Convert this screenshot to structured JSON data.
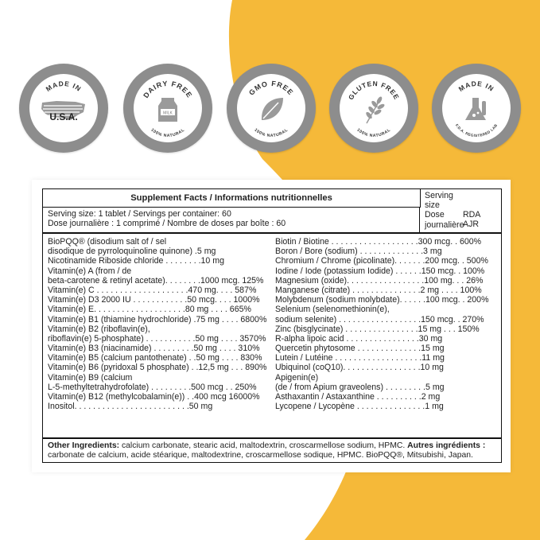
{
  "colors": {
    "yellow": "#f5b939",
    "badge_ring": "#8d8d8d",
    "text": "#222222"
  },
  "badges": [
    {
      "top": "MADE IN",
      "main": "U.S.A.",
      "icon": "usa-map-icon"
    },
    {
      "top": "DAIRY FREE",
      "main": "MILK",
      "bottom": "100% NATURAL",
      "icon": "milk-carton-icon"
    },
    {
      "top": "GMO FREE",
      "bottom": "100% NATURAL",
      "icon": "leaf-icon"
    },
    {
      "top": "GLUTEN FREE",
      "bottom": "100% NATURAL",
      "icon": "wheat-icon"
    },
    {
      "top": "MADE IN",
      "bottom": "F.D.A. REGISTERED LAB",
      "icon": "lab-flask-icon"
    }
  ],
  "facts": {
    "title": "Supplement Facts / Informations nutritionnelles",
    "serving_line1": "Serving size: 1 tablet / Servings per container: 60",
    "serving_line2": "Dose journalière : 1 comprimé / Nombre de doses par boîte : 60",
    "side_serving_1": "Serving",
    "side_serving_2": "size",
    "side_serving_3": "Dose",
    "side_serving_4": "journalière",
    "side_rda": "RDA",
    "side_ajr": "AJR",
    "left_rows": [
      "BioPQQ® (disodium salt of / sel",
      "disodique de pyrroloquinoline quinone) .5 mg",
      "Nicotinamide Riboside chloride . . . . . . . .10 mg",
      "Vitamin(e) A (from / de",
      "beta-carotene & retinyl acetate). . . . . . . .1000 mcg. 125%",
      "Vitamin(e) C . . . . . . . . . . . . . . . . . . . .470 mg. . . . 587%",
      "Vitamin(e) D3 2000 IU . . . . . . . . . . . .50 mcg. . . . 1000%",
      "Vitamin(e) E. . . . . . . . . . . . . . . . . . . .80 mg . . . . 665%",
      "Vitamin(e) B1 (thiamine hydrochloride) .75 mg . . . . 6800%",
      "Vitamin(e) B2 (riboflavin(e),",
      "riboflavin(e) 5-phosphate) . . . . . . . . . . .50 mg . . . . 3570%",
      "Vitamin(e) B3 (niacinamide) . . . . . . . . .50 mg . . . . 310%",
      "Vitamin(e) B5 (calcium pantothenate) . .50 mg . . . . 830%",
      "Vitamin(e) B6 (pyridoxal 5 phosphate) . .12,5 mg . . . 890%",
      "Vitamin(e) B9 (calcium",
      "L-5-methyltetrahydrofolate) . . . . . . . . .500 mcg . . 250%",
      "Vitamin(e) B12 (methylcobalamin(e)) . .400 mcg 16000%",
      "Inositol. . . . . . . . . . . . . . . . . . . . . . . . .50 mg"
    ],
    "right_rows": [
      "Biotin / Biotine . . . . . . . . . . . . . . . . . . .300 mcg. . 600%",
      "Boron / Bore (sodium) . . . . . . . . . . . . . .3 mg",
      "Chromium / Chrome (picolinate). . . . . . .200 mcg. . 500%",
      "Iodine / Iode (potassium Iodide) . . . . . .150 mcg. . 100%",
      "Magnesium (oxide). . . . . . . . . . . . . . . . .100 mg. . . 26%",
      "Manganese (citrate) . . . . . . . . . . . . . . .2 mg . . . . 100%",
      "Molybdenum (sodium molybdate). . . . . .100 mcg. . 200%",
      "Selenium (selenomethionin(e),",
      "sodium selenite) . . . . . . . . . . . . . . . . . .150 mcg. . 270%",
      "Zinc (bisglycinate) . . . . . . . . . . . . . . . .15 mg . . . 150%",
      "R-alpha lipoic acid . . . . . . . . . . . . . . . .30 mg",
      "Quercetin phytosome . . . . . . . . . . . . . .15 mg",
      "Lutein / Lutéine . . . . . . . . . . . . . . . . . . .11 mg",
      "Ubiquinol (coQ10). . . . . . . . . . . . . . . . .10 mg",
      "Apigenin(e)",
      "(de / from Apium graveolens) . . . . . . . . .5 mg",
      "Asthaxantin / Astaxanthine . . . . . . . . . .2 mg",
      "Lycopene / Lycopène . . . . . . . . . . . . . . .1 mg"
    ],
    "other_label": "Other Ingredients:",
    "other_text": " calcium carbonate, stearic acid, maltodextrin, croscarmellose sodium, HPMC. ",
    "autres_label": "Autres ingrédients :",
    "autres_text": "carbonate de calcium, acide stéarique, maltodextrine, croscarmellose sodique, HPMC. BioPQQ®, Mitsubishi, Japan."
  }
}
